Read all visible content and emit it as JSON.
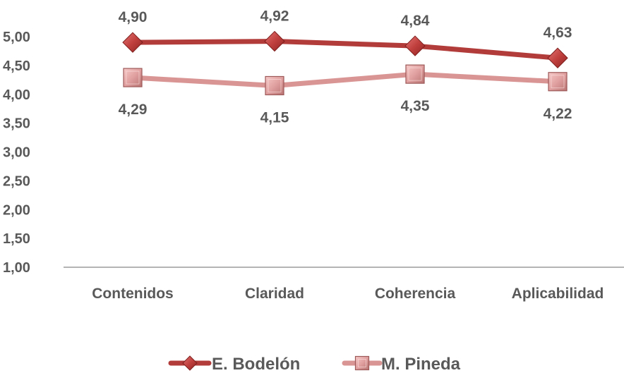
{
  "chart_data": {
    "type": "line",
    "categories": [
      "Contenidos",
      "Claridad",
      "Coherencia",
      "Aplicabilidad"
    ],
    "series": [
      {
        "name": "E. Bodelón",
        "values": [
          4.9,
          4.92,
          4.84,
          4.63
        ],
        "labels": [
          "4,90",
          "4,92",
          "4,84",
          "4,63"
        ],
        "color": "#b13c3a",
        "marker": "diamond",
        "label_position": "above"
      },
      {
        "name": "M. Pineda",
        "values": [
          4.29,
          4.15,
          4.35,
          4.22
        ],
        "labels": [
          "4,29",
          "4,15",
          "4,35",
          "4,22"
        ],
        "color": "#d99594",
        "marker": "square",
        "label_position": "below"
      }
    ],
    "y_ticks": [
      1.0,
      1.5,
      2.0,
      2.5,
      3.0,
      3.5,
      4.0,
      4.5,
      5.0
    ],
    "y_tick_labels": [
      "1,00",
      "1,50",
      "2,00",
      "2,50",
      "3,00",
      "3,50",
      "4,00",
      "4,50",
      "5,00"
    ],
    "ylim": [
      1.0,
      5.0
    ],
    "grid": false,
    "legend_position": "bottom",
    "title": "",
    "xlabel": "",
    "ylabel": ""
  }
}
